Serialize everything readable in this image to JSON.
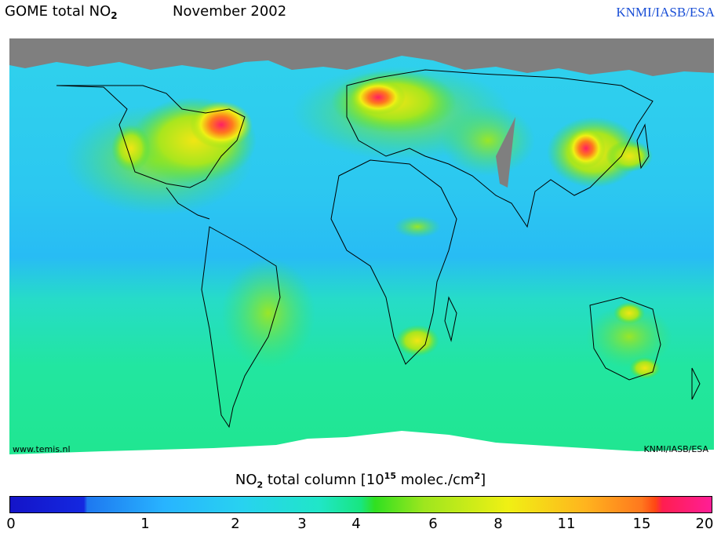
{
  "header": {
    "title_main": "GOME total NO",
    "title_sub": "2",
    "month": "November 2002",
    "credit": "KNMI/IASB/ESA"
  },
  "map": {
    "website": "www.temis.nl",
    "credit_inset": "KNMI/IASB/ESA",
    "missing_color": "#7f7f7f",
    "background_color": "#30d6e6",
    "hotspots": [
      "Eastern North America",
      "Western Europe",
      "Eastern China",
      "Japan / Korea",
      "Southern Africa",
      "Eastern Australia"
    ]
  },
  "colorbar": {
    "label_pre": "NO",
    "label_sub": "2",
    "label_mid": " total column [10",
    "label_sup1": "15",
    "label_post": " molec./cm",
    "label_sup2": "2",
    "label_end": "]",
    "ticks": [
      "0",
      "1",
      "2",
      "3",
      "4",
      "6",
      "8",
      "11",
      "15",
      "20"
    ]
  }
}
